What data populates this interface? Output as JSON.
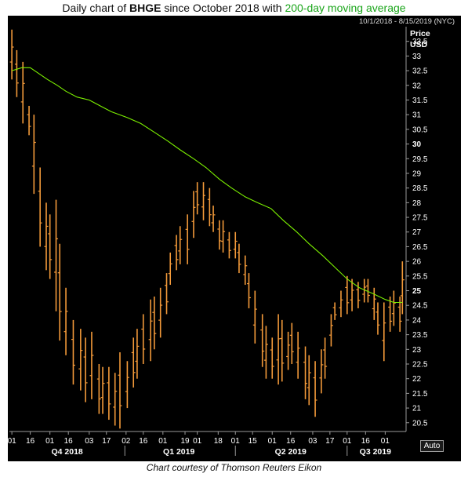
{
  "header": {
    "title_prefix": "Daily chart of ",
    "ticker": "BHGE",
    "title_middle": " since October 2018 with ",
    "ma_label": "200-day moving average"
  },
  "footer": {
    "caption": "Chart courtesy of Thomson Reuters Eikon"
  },
  "controls": {
    "auto_label": "Auto"
  },
  "colors": {
    "background": "#000000",
    "candles": "#f39a3a",
    "moving_average": "#7cf000",
    "text": "#ffffff",
    "axis": "#9a9a9a",
    "title_ma": "#1aa51a"
  },
  "chart_data": {
    "type": "bar",
    "date_range": "10/1/2018 - 8/15/2019 (NYC)",
    "ylabel": "Price",
    "yunit": "USD",
    "ylim": [
      20.2,
      34.0
    ],
    "y_ticks": [
      "20.5",
      "21",
      "21.5",
      "22",
      "22.5",
      "23",
      "23.5",
      "24",
      "24.5",
      "25",
      "25.5",
      "26",
      "26.5",
      "27",
      "27.5",
      "28",
      "28.5",
      "29",
      "29.5",
      "30",
      "30.5",
      "31",
      "31.5",
      "32",
      "32.5",
      "33",
      "33.5"
    ],
    "y_ticks_bold": [
      "25",
      "30"
    ],
    "x_day_ticks": [
      "01",
      "16",
      "01",
      "16",
      "03",
      "17",
      "02",
      "16",
      "01",
      "19",
      "01",
      "18",
      "01",
      "15",
      "01",
      "16",
      "03",
      "17",
      "01",
      "16",
      "01"
    ],
    "x_period_labels": [
      "Q4 2018",
      "Q1 2019",
      "Q2 2019",
      "Q3 2019"
    ],
    "price_series": {
      "name": "BHGE daily price range",
      "style": "daily high-low bars",
      "dates": [
        "2018-10-01",
        "2018-10-05",
        "2018-10-10",
        "2018-10-15",
        "2018-10-19",
        "2018-10-24",
        "2018-10-29",
        "2018-11-01",
        "2018-11-06",
        "2018-11-09",
        "2018-11-14",
        "2018-11-20",
        "2018-11-26",
        "2018-11-30",
        "2018-12-05",
        "2018-12-11",
        "2018-12-14",
        "2018-12-19",
        "2018-12-24",
        "2018-12-28",
        "2019-01-03",
        "2019-01-08",
        "2019-01-11",
        "2019-01-16",
        "2019-01-22",
        "2019-01-25",
        "2019-01-30",
        "2019-02-04",
        "2019-02-07",
        "2019-02-12",
        "2019-02-15",
        "2019-02-21",
        "2019-02-26",
        "2019-03-01",
        "2019-03-06",
        "2019-03-11",
        "2019-03-14",
        "2019-03-19",
        "2019-03-22",
        "2019-03-27",
        "2019-04-01",
        "2019-04-04",
        "2019-04-09",
        "2019-04-12",
        "2019-04-17",
        "2019-04-23",
        "2019-04-26",
        "2019-05-01",
        "2019-05-06",
        "2019-05-09",
        "2019-05-14",
        "2019-05-17",
        "2019-05-22",
        "2019-05-28",
        "2019-05-31",
        "2019-06-05",
        "2019-06-10",
        "2019-06-13",
        "2019-06-18",
        "2019-06-21",
        "2019-06-26",
        "2019-07-01",
        "2019-07-05",
        "2019-07-10",
        "2019-07-15",
        "2019-07-18",
        "2019-07-23",
        "2019-07-26",
        "2019-07-31",
        "2019-08-05",
        "2019-08-08",
        "2019-08-13",
        "2019-08-15"
      ],
      "high": [
        33.9,
        33.2,
        32.8,
        31.3,
        31.0,
        29.2,
        28.0,
        27.6,
        28.1,
        26.6,
        25.1,
        24.0,
        23.7,
        23.4,
        23.6,
        22.5,
        22.4,
        22.4,
        22.2,
        22.9,
        22.6,
        23.4,
        23.7,
        24.2,
        24.7,
        24.8,
        25.1,
        25.6,
        26.3,
        26.9,
        27.2,
        27.6,
        28.4,
        28.7,
        28.7,
        28.5,
        27.9,
        27.4,
        27.4,
        27.0,
        27.0,
        26.6,
        26.2,
        25.6,
        25.0,
        24.2,
        23.8,
        23.4,
        24.2,
        24.0,
        23.6,
        23.9,
        23.6,
        23.1,
        22.8,
        22.6,
        23.0,
        23.4,
        24.2,
        24.6,
        25.0,
        25.5,
        25.4,
        25.3,
        25.4,
        25.4,
        25.1,
        24.6,
        24.6,
        24.8,
        25.0,
        24.8,
        26.0
      ],
      "low": [
        32.2,
        31.6,
        30.7,
        30.3,
        28.3,
        26.5,
        25.7,
        25.4,
        24.3,
        23.3,
        22.8,
        21.8,
        21.6,
        21.2,
        21.3,
        20.8,
        20.8,
        20.6,
        20.4,
        20.3,
        21.0,
        21.7,
        22.0,
        22.5,
        22.6,
        23.0,
        23.4,
        24.2,
        25.2,
        25.7,
        25.9,
        25.9,
        26.8,
        27.6,
        27.4,
        27.2,
        27.0,
        26.4,
        26.3,
        26.1,
        26.1,
        25.6,
        25.2,
        24.4,
        23.2,
        22.4,
        22.0,
        22.0,
        21.8,
        21.9,
        22.3,
        22.5,
        22.0,
        21.3,
        21.1,
        20.7,
        21.5,
        22.0,
        23.1,
        24.0,
        24.1,
        24.2,
        24.3,
        24.4,
        24.6,
        24.6,
        24.0,
        23.5,
        22.6,
        23.6,
        23.8,
        23.6,
        24.2
      ]
    },
    "moving_average": {
      "name": "200-day moving average",
      "dates": [
        "2018-10-01",
        "2018-10-09",
        "2018-10-16",
        "2018-10-23",
        "2018-10-30",
        "2018-11-07",
        "2018-11-14",
        "2018-11-23",
        "2018-12-03",
        "2018-12-12",
        "2018-12-21",
        "2019-01-03",
        "2019-01-14",
        "2019-01-25",
        "2019-02-05",
        "2019-02-15",
        "2019-02-26",
        "2019-03-08",
        "2019-03-19",
        "2019-03-29",
        "2019-04-09",
        "2019-04-19",
        "2019-04-30",
        "2019-05-10",
        "2019-05-21",
        "2019-05-31",
        "2019-06-11",
        "2019-06-21",
        "2019-07-01",
        "2019-07-11",
        "2019-07-22",
        "2019-08-01",
        "2019-08-08",
        "2019-08-15"
      ],
      "values": [
        32.5,
        32.6,
        32.6,
        32.4,
        32.2,
        32.0,
        31.8,
        31.6,
        31.5,
        31.3,
        31.1,
        30.9,
        30.7,
        30.4,
        30.1,
        29.8,
        29.5,
        29.2,
        28.8,
        28.5,
        28.2,
        28.0,
        27.8,
        27.4,
        27.0,
        26.6,
        26.2,
        25.8,
        25.4,
        25.1,
        24.9,
        24.7,
        24.6,
        24.6
      ]
    }
  }
}
